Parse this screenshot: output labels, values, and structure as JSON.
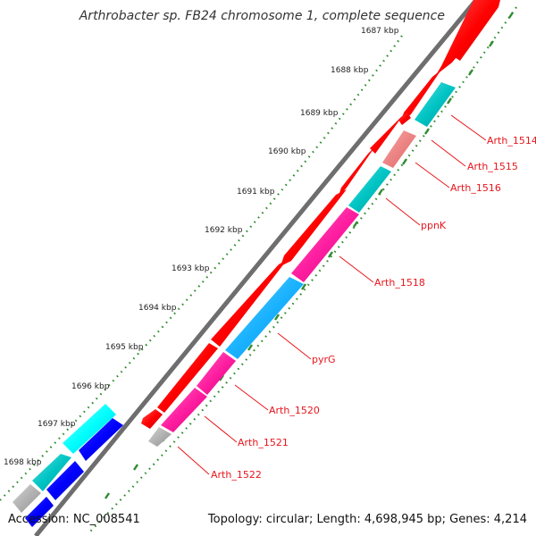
{
  "title": "Arthrobacter sp. FB24 chromosome 1, complete sequence",
  "footer": {
    "accession": "Accession: NC_008541",
    "summary": "Topology: circular; Length: 4,698,945 bp; Genes: 4,214"
  },
  "ticks": [
    "1687 kbp",
    "1688 kbp",
    "1689 kbp",
    "1690 kbp",
    "1691 kbp",
    "1692 kbp",
    "1693 kbp",
    "1694 kbp",
    "1695 kbp",
    "1696 kbp",
    "1697 kbp",
    "1698 kbp"
  ],
  "gene_labels": [
    "Arth_1514",
    "Arth_1515",
    "Arth_1516",
    "ppnK",
    "Arth_1518",
    "pyrG",
    "Arth_1520",
    "Arth_1521",
    "Arth_1522"
  ],
  "colors": {
    "red": "#ff0000",
    "cyan": "#00c8c8",
    "light_cyan": "#00ffff",
    "salmon": "#ee7070",
    "magenta": "#ff1ea0",
    "sky_blue": "#1ab2ff",
    "blue": "#0000ff",
    "gray": "#a0a0a0",
    "backbone": "#7a7a7a",
    "tick_green": "#2e8b2e",
    "label_red": "#e8161c"
  }
}
